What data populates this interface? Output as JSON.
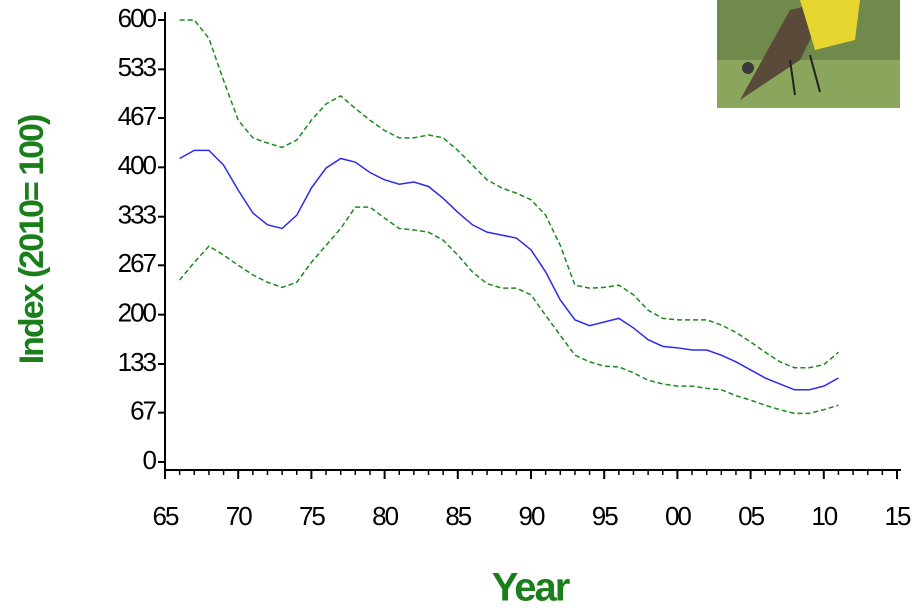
{
  "chart_data": {
    "type": "line",
    "x_label": "Year",
    "y_label": "Index (2010= 100)",
    "xlim": [
      1965,
      2015
    ],
    "ylim": [
      0,
      600
    ],
    "xticks": [
      {
        "value": 1965,
        "label": "65"
      },
      {
        "value": 1970,
        "label": "70"
      },
      {
        "value": 1975,
        "label": "75"
      },
      {
        "value": 1980,
        "label": "80"
      },
      {
        "value": 1985,
        "label": "85"
      },
      {
        "value": 1990,
        "label": "90"
      },
      {
        "value": 1995,
        "label": "95"
      },
      {
        "value": 2000,
        "label": "00"
      },
      {
        "value": 2005,
        "label": "05"
      },
      {
        "value": 2010,
        "label": "10"
      },
      {
        "value": 2015,
        "label": "15"
      }
    ],
    "xminorticks": [
      1966,
      1967,
      1968,
      1969,
      1971,
      1972,
      1973,
      1974,
      1976,
      1977,
      1978,
      1979,
      1981,
      1982,
      1983,
      1984,
      1986,
      1987,
      1988,
      1989,
      1991,
      1992,
      1993,
      1994,
      1996,
      1997,
      1998,
      1999,
      2001,
      2002,
      2003,
      2004,
      2006,
      2007,
      2008,
      2009,
      2011,
      2012,
      2013,
      2014
    ],
    "yticks": [
      0,
      67,
      133,
      200,
      267,
      333,
      400,
      467,
      533,
      600
    ],
    "x": [
      1966,
      1967,
      1968,
      1969,
      1970,
      1971,
      1972,
      1973,
      1974,
      1975,
      1976,
      1977,
      1978,
      1979,
      1980,
      1981,
      1982,
      1983,
      1984,
      1985,
      1986,
      1987,
      1988,
      1989,
      1990,
      1991,
      1992,
      1993,
      1994,
      1995,
      1996,
      1997,
      1998,
      1999,
      2000,
      2001,
      2002,
      2003,
      2004,
      2005,
      2006,
      2007,
      2008,
      2009,
      2010,
      2011
    ],
    "series": [
      {
        "color": "#1a8a1a",
        "dash": true,
        "values": [
          600,
          600,
          575,
          518,
          464,
          440,
          433,
          427,
          437,
          464,
          486,
          497,
          480,
          464,
          450,
          440,
          440,
          444,
          440,
          423,
          403,
          383,
          372,
          365,
          356,
          335,
          294,
          240,
          236,
          237,
          240,
          227,
          206,
          195,
          193,
          193,
          193,
          186,
          176,
          163,
          149,
          136,
          128,
          128,
          132,
          149
        ]
      },
      {
        "color": "#2b2bf0",
        "dash": false,
        "values": [
          412,
          423,
          423,
          403,
          369,
          338,
          322,
          317,
          335,
          372,
          399,
          412,
          407,
          393,
          383,
          377,
          380,
          374,
          358,
          339,
          322,
          312,
          308,
          304,
          288,
          258,
          220,
          193,
          185,
          190,
          195,
          182,
          166,
          157,
          155,
          152,
          152,
          145,
          136,
          125,
          114,
          106,
          98,
          98,
          103,
          114
        ]
      },
      {
        "color": "#1a8a1a",
        "dash": true,
        "values": [
          247,
          271,
          293,
          281,
          267,
          254,
          244,
          237,
          244,
          271,
          294,
          317,
          346,
          346,
          331,
          317,
          315,
          312,
          301,
          281,
          258,
          242,
          236,
          236,
          227,
          199,
          172,
          145,
          136,
          130,
          129,
          121,
          111,
          106,
          103,
          103,
          100,
          98,
          90,
          84,
          77,
          71,
          66,
          66,
          71,
          77
        ]
      }
    ]
  }
}
